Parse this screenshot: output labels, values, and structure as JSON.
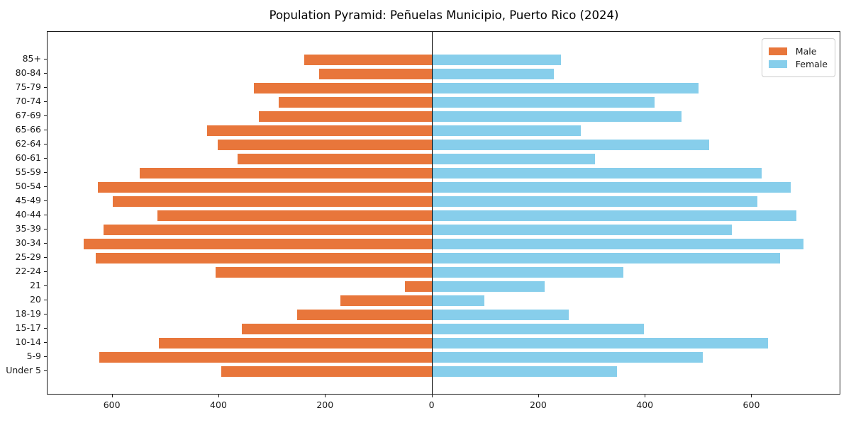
{
  "title": "Population Pyramid: Peñuelas Municipio, Puerto Rico (2024)",
  "legend": {
    "male_label": "Male",
    "female_label": "Female"
  },
  "colors": {
    "male": "#e8763b",
    "female": "#87ceeb",
    "axis": "#1a1a1a",
    "zero_line": "#000000"
  },
  "chart_data": {
    "type": "bar",
    "subtype": "population-pyramid",
    "title": "Population Pyramid: Peñuelas Municipio, Puerto Rico (2024)",
    "categories": [
      "85+",
      "80-84",
      "75-79",
      "70-74",
      "67-69",
      "65-66",
      "62-64",
      "60-61",
      "55-59",
      "50-54",
      "45-49",
      "40-44",
      "35-39",
      "30-34",
      "25-29",
      "22-24",
      "21",
      "20",
      "18-19",
      "15-17",
      "10-14",
      "5-9",
      "Under 5"
    ],
    "series": [
      {
        "name": "Male",
        "direction": "left",
        "values": [
          240,
          213,
          335,
          288,
          326,
          423,
          403,
          366,
          549,
          628,
          600,
          516,
          617,
          654,
          632,
          406,
          52,
          172,
          253,
          358,
          513,
          625,
          396
        ]
      },
      {
        "name": "Female",
        "direction": "right",
        "values": [
          242,
          228,
          500,
          417,
          468,
          279,
          520,
          305,
          618,
          672,
          610,
          683,
          562,
          697,
          652,
          359,
          211,
          98,
          256,
          397,
          630,
          508,
          346
        ]
      }
    ],
    "x_ticks": [
      -600,
      -400,
      -200,
      0,
      200,
      400,
      600
    ],
    "x_tick_labels": [
      "600",
      "400",
      "200",
      "0",
      "200",
      "400",
      "600"
    ],
    "xlim": [
      -722,
      767
    ],
    "grid": false,
    "legend_position": "upper-right"
  }
}
